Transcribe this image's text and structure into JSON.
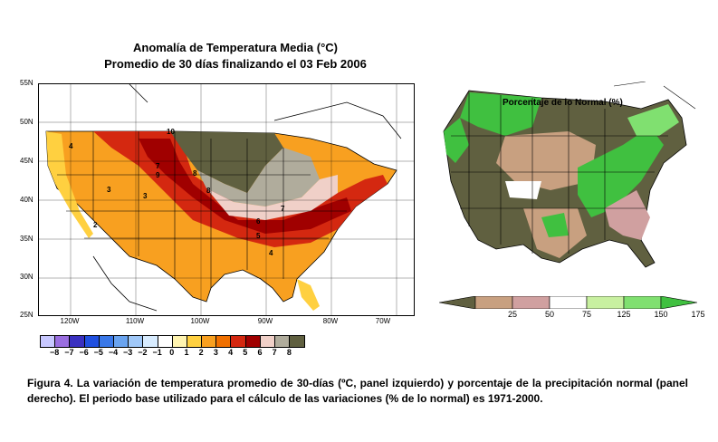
{
  "left_panel": {
    "title_line1": "Anomalía de Temperatura Media (°C)",
    "title_line2": "Promedio de 30 días finalizando el 03 Feb 2006",
    "lat_labels": [
      "55N",
      "50N",
      "45N",
      "40N",
      "35N",
      "30N",
      "25N"
    ],
    "lon_labels": [
      "120W",
      "110W",
      "100W",
      "90W",
      "80W",
      "70W"
    ],
    "contour_labels": [
      "10",
      "4",
      "7",
      "9",
      "8",
      "8",
      "3",
      "3",
      "7",
      "2",
      "6",
      "5",
      "4"
    ],
    "colorbar": {
      "labels": [
        "−8",
        "−7",
        "−6",
        "−5",
        "−4",
        "−3",
        "−2",
        "−1",
        "0",
        "1",
        "2",
        "3",
        "4",
        "5",
        "6",
        "7",
        "8"
      ],
      "colors": [
        "#c8c8ff",
        "#9a6ee0",
        "#3a30c0",
        "#2050e0",
        "#3a78e8",
        "#6aa4f0",
        "#a0c8f8",
        "#d8ecff",
        "#ffffff",
        "#fff4b0",
        "#ffd040",
        "#f8a020",
        "#f07000",
        "#d42810",
        "#a00000",
        "#f0d0c8",
        "#b0ac9c",
        "#606040"
      ]
    }
  },
  "right_panel": {
    "title": "Porcentaje de lo Normal (%)",
    "colorbar": {
      "labels": [
        "25",
        "50",
        "75",
        "125",
        "150",
        "175"
      ],
      "colors": [
        "#606040",
        "#c8a080",
        "#d0a0a0",
        "#ffffff",
        "#c8f0a0",
        "#80e070",
        "#40c040"
      ]
    }
  },
  "caption": "Figura 4. La variación de temperatura promedio de 30-días (ºC, panel izquierdo) y porcentaje de la precipitación normal (panel derecho). El periodo base utilizado para el cálculo de las variaciones (% de lo normal) es 1971-2000."
}
